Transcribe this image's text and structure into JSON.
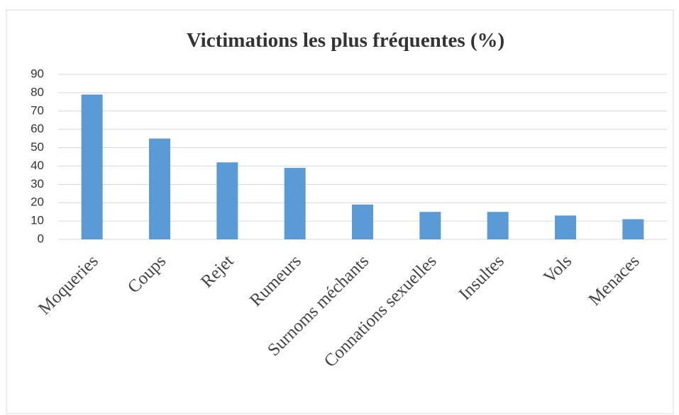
{
  "chart_data": {
    "type": "bar",
    "title": "Victimations les plus fréquentes (%)",
    "categories": [
      "Moqueries",
      "Coups",
      "Rejet",
      "Rumeurs",
      "Surnoms méchants",
      "Connations sexuelles",
      "Insultes",
      "Vols",
      "Menaces"
    ],
    "values": [
      79,
      55,
      42,
      39,
      19,
      15,
      15,
      13,
      11
    ],
    "color": "#5b9bd5",
    "ylim": [
      0,
      90
    ],
    "yticks": [
      0,
      10,
      20,
      30,
      40,
      50,
      60,
      70,
      80,
      90
    ],
    "grid": true
  }
}
